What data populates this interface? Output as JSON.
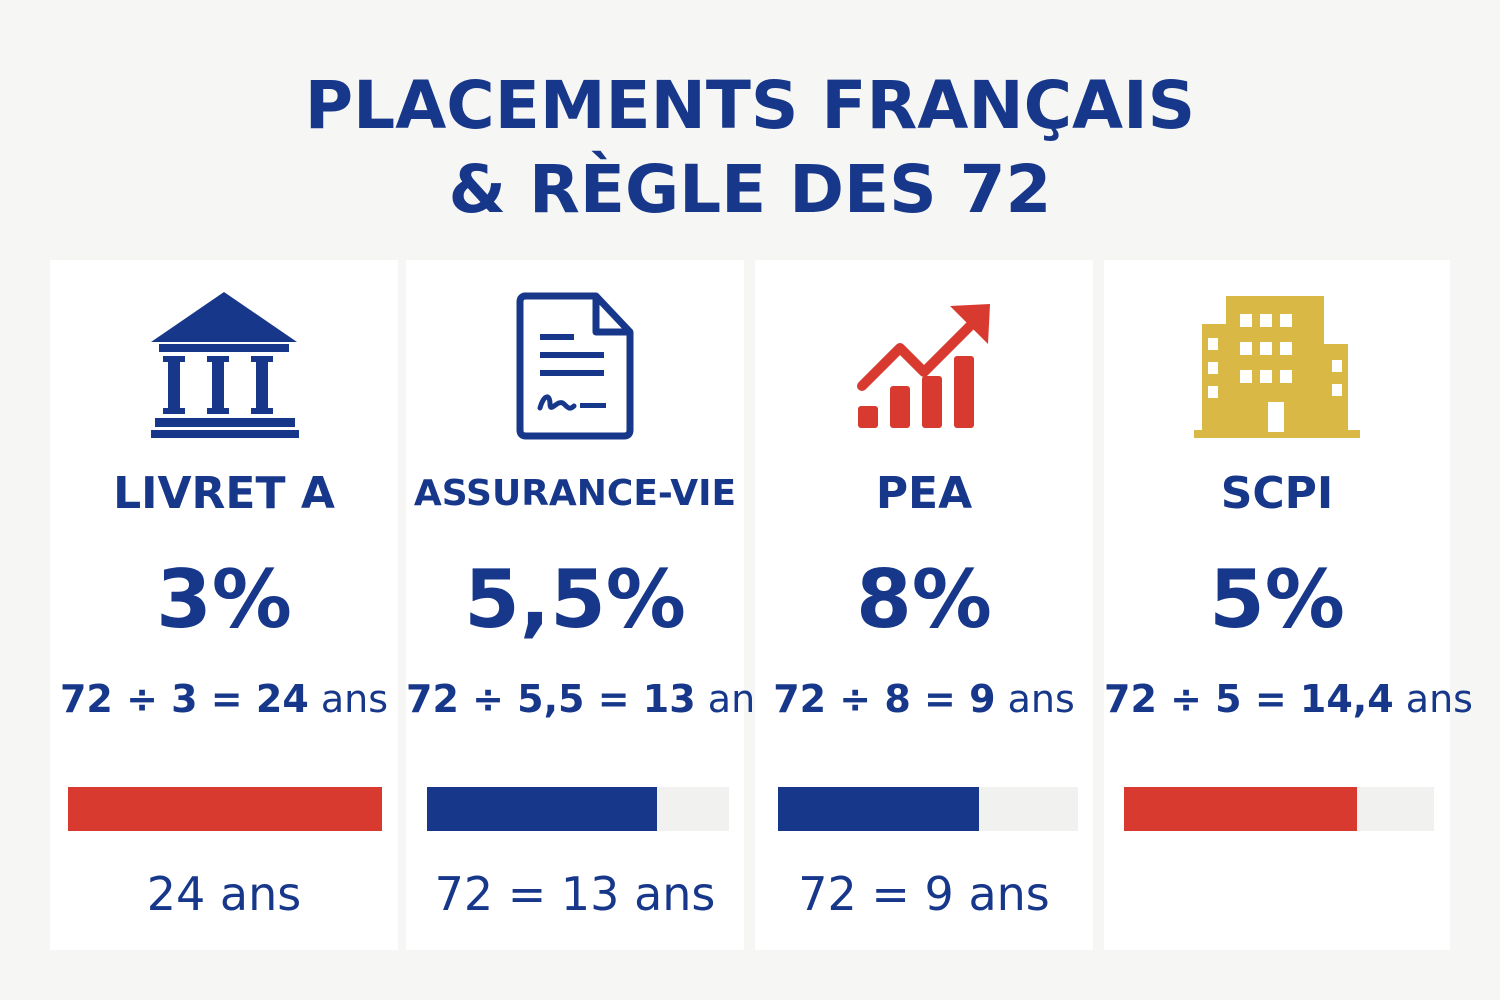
{
  "title": {
    "line1": "PLACEMENTS FRANÇAIS",
    "line2": "& RÈGLE DES 72"
  },
  "colors": {
    "navy": "#17378a",
    "red": "#d93a30",
    "gold": "#d9b846",
    "track": "#f1f1ef"
  },
  "cards": [
    {
      "icon": "bank-icon",
      "name": "LIVRET A",
      "rate": "3%",
      "formula_ops": "72 ÷ 3 = 24",
      "formula_unit": "ans",
      "bar_fill_fraction": 1.0,
      "bar_color": "#d93a30",
      "result": "24 ans"
    },
    {
      "icon": "contract-document-icon",
      "name": "ASSURANCE-VIE",
      "rate": "5,5%",
      "formula_ops": "72 ÷ 5,5 = 13",
      "formula_unit": "ans",
      "bar_fill_fraction": 0.76,
      "bar_color": "#17378a",
      "result": "72 = 13 ans"
    },
    {
      "icon": "growth-chart-icon",
      "name": "PEA",
      "rate": "8%",
      "formula_ops": "72 ÷ 8 = 9",
      "formula_unit": "ans",
      "bar_fill_fraction": 0.67,
      "bar_color": "#17378a",
      "result": "72 = 9 ans"
    },
    {
      "icon": "building-icon",
      "name": "SCPI",
      "rate": "5%",
      "formula_ops": "72 ÷ 5 = 14,4",
      "formula_unit": "ans",
      "bar_fill_fraction": 0.75,
      "bar_color": "#d93a30",
      "result": ""
    }
  ]
}
